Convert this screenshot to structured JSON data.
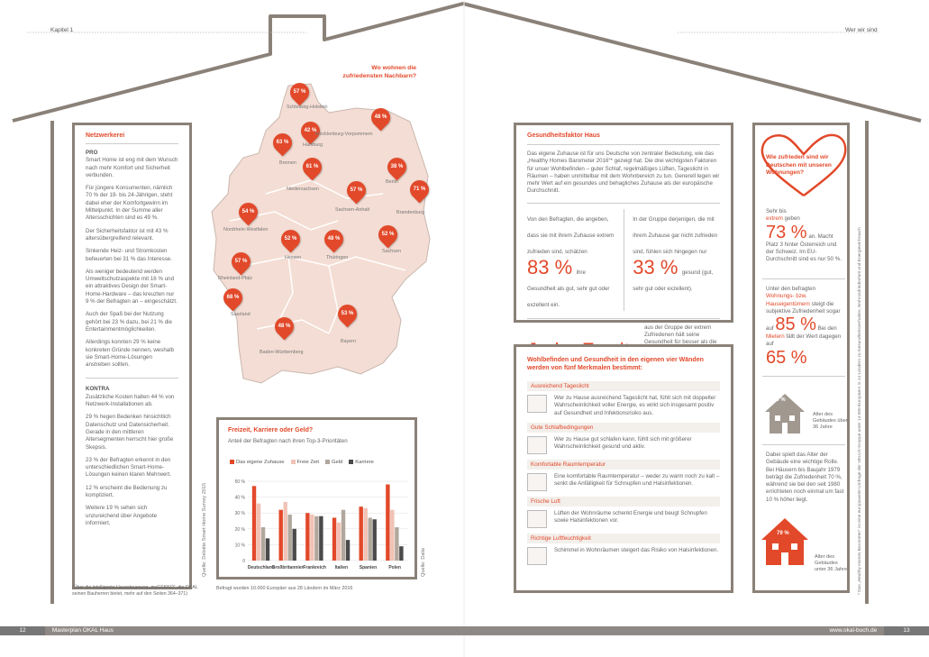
{
  "header": {
    "left": "Kapitel 1",
    "right": "Wer wir sind"
  },
  "footer": {
    "page_left": "12",
    "title_left": "Masterplan OKAL Haus",
    "url_right": "www.okal-buch.de",
    "page_right": "13"
  },
  "netzwerkerei": {
    "title": "Netzwerkerei",
    "pro_label": "PRO",
    "pro_p1": "Smart Home ist eng mit dem Wunsch nach mehr Komfort und Sicherheit verbunden.",
    "pro_p2": "Für jüngere Konsumenten, nämlich 70 % der 19- bis 24-Jährigen, steht dabei eher der Komfortgewinn im Mittelpunkt. In der Summe aller Altersschichten sind es 49 %.",
    "pro_p3": "Der Sicherheitsfaktor ist mit 43 % altersübergreifend relevant.",
    "pro_p4": "Sinkende Heiz- und Stromkosten befeuerten bei 31 % das Interesse.",
    "pro_p5": "Als weniger bedeutend werden Umweltschutzaspekte mit 16 % und ein attraktives Design der Smart-Home-Hardware – das kreuzten nur 9 % der Befragten an – eingeschätzt.",
    "pro_p6": "Auch der Spaß bei der Nutzung gehört bei 23 % dazu, bei 21 % die Entertainmentmöglichkeiten.",
    "pro_p7": "Allerdings konnten 29 % keine konkreten Gründe nennen, weshalb sie Smart-Home-Lösungen anstreben sollten.",
    "kontra_label": "KONTRA",
    "kontra_p1": "Zusätzliche Kosten halten 44 % von Netzwerk-Installationen ab.",
    "kontra_p2": "29 % hegen Bedenken hinsichtlich Datenschutz und Datensicherheit. Gerade in den mittleren Altersegmenten herrscht hier große Skepsis.",
    "kontra_p3": "23 % der Befragten erkennt in den unterschiedlichen Smart-Home-Lösungen keinen klaren Mehrwert.",
    "kontra_p4": "12 % erscheint die Bedienung zu kompliziert.",
    "kontra_p5": "Weitere 19 % sehen sich unzureichend über Angebote informiert.",
    "note": "(Über die intelligente Haussteuerung „myGEKKO“, die OKAL seinen Bauherren bietet, mehr auf den Seiten 364–371)"
  },
  "map": {
    "title": "Wo wohnen die zufriedensten Nachbarn?",
    "pins": [
      {
        "label": "57 %",
        "region": "Schleswig-Holstein"
      },
      {
        "label": "42 %",
        "region": "Hamburg"
      },
      {
        "label": "48 %",
        "region": "Mecklenburg-Vorpommern"
      },
      {
        "label": "63 %",
        "region": "Bremen"
      },
      {
        "label": "61 %",
        "region": "Niedersachsen"
      },
      {
        "label": "38 %",
        "region": "Berlin"
      },
      {
        "label": "71 %",
        "region": "Brandenburg"
      },
      {
        "label": "57 %",
        "region": "Sachsen-Anhalt"
      },
      {
        "label": "54 %",
        "region": "Nordrhein-Westfalen"
      },
      {
        "label": "52 %",
        "region": "Hessen"
      },
      {
        "label": "48 %",
        "region": "Thüringen"
      },
      {
        "label": "52 %",
        "region": "Sachsen"
      },
      {
        "label": "57 %",
        "region": "Rheinland-Pfalz"
      },
      {
        "label": "68 %",
        "region": "Saarland"
      },
      {
        "label": "48 %",
        "region": "Baden-Württemberg"
      },
      {
        "label": "53 %",
        "region": "Bayern"
      }
    ]
  },
  "chart_box": {
    "title": "Freizeit, Karriere oder Geld?",
    "subtitle": "Anteil der Befragten nach ihren Top-3-Prioritäten",
    "source_left": "Quelle: Deloitte Smart Home Survey 2015",
    "source_right": "Quelle: Dalia",
    "footnote": "Befragt wurden 10.000 Europäer aus 28 Ländern im März 2016"
  },
  "chart_data": {
    "type": "bar",
    "title": "Freizeit, Karriere oder Geld?",
    "categories": [
      "Deutschland",
      "Großbritannien",
      "Frankreich",
      "Italien",
      "Spanien",
      "Polen"
    ],
    "series": [
      {
        "name": "Das eigene Zuhause",
        "values": [
          47,
          32,
          30,
          27,
          34,
          48
        ],
        "color": "#e2492a"
      },
      {
        "name": "Freie Zeit",
        "values": [
          36,
          37,
          29,
          24,
          33,
          32
        ],
        "color": "#f1c2b5"
      },
      {
        "name": "Geld",
        "values": [
          21,
          29,
          28,
          32,
          27,
          21
        ],
        "color": "#b1a79d"
      },
      {
        "name": "Karriere",
        "values": [
          14,
          20,
          28,
          13,
          26,
          9
        ],
        "color": "#4a4a4a"
      }
    ],
    "yticks": [
      "0",
      "10 %",
      "20 %",
      "30 %",
      "40 %",
      "50 %"
    ],
    "ylim": [
      0,
      50
    ]
  },
  "gesundheit": {
    "title": "Gesundheitsfaktor Haus",
    "body": "Das eigene Zuhause ist für uns Deutsche von zentraler Bedeutung, wie das „Healthy Homes Barometer 2016“* gezeigt hat. Die drei wichtigsten Faktoren für unser Wohlbefinden – guter Schlaf, regelmäßiges Lüften, Tageslicht in Räumen – haben unmittelbar mit dem Wohnbereich zu tun. Generell legen wir mehr Wert auf ein gesundes und behagliches Zuhause als der europäische Durchschnitt.",
    "left_intro": "Von den Befragten, die angeben, dass sie mit ihrem Zuhause extrem zufrieden sind, schätzen",
    "left_big": "83 %",
    "left_rest": "ihre Gesundheit als gut, sehr gut oder exzellent ein.",
    "right_intro": "In der Gruppe derjenigen, die mit ihrem Zuhause gar nicht zufrieden sind, fühlen sich hingegen nur",
    "right_big": "33 %",
    "right_rest": "gesund (gut, sehr gut oder exzellent).",
    "jeder_big": "Jeder Zweite",
    "jeder_rest": "aus der Gruppe der extrem Zufriedenen hält seine Gesundheit für besser als die seiner Altersgenossen. Im deutschen Durchschnitt beträgt das nur etwa jeder Dritte."
  },
  "wohlbefinden": {
    "title": "Wohlbefinden und Gesundheit in den eigenen vier Wänden werden von fünf Merkmalen bestimmt:",
    "items": [
      {
        "title": "Ausreichend Tageslicht",
        "text": "Wer zu Hause ausreichend Tageslicht hat, fühlt sich mit doppelter Wahrscheinlichkeit voller Energie, es wirkt sich insgesamt positiv auf Gesundheit und Infektionsrisiko aus."
      },
      {
        "title": "Gute Schlafbedingungen",
        "text": "Wer zu Hause gut schlafen kann, fühlt sich mit größerer Wahrscheinlichkeit gesund und aktiv."
      },
      {
        "title": "Komfortable Raumtemperatur",
        "text": "Eine komfortable Raumtemperatur – weder zu warm noch zu kalt – senkt die Anfälligkeit für Schnupfen und Halsinfektionen."
      },
      {
        "title": "Frische Luft",
        "text": "Lüften der Wohnräume schenkt Energie und beugt Schnupfen sowie Halsinfektionen vor."
      },
      {
        "title": "Richtige Luftfeuchtigkeit",
        "text": "Schimmel in Wohnräumen steigert das Risiko von Halsinfektionen."
      }
    ]
  },
  "zufrieden": {
    "title": "Wie zufrieden sind wir Deutschen mit unseren Wohnungen?",
    "p1_a": "Sehr bis",
    "p1_b": "extrem",
    "p1_c": "geben",
    "p1_big": "73 %",
    "p1_d": "an. Macht Platz 3 hinter Österreich und der Schweiz. Im EU-Durchschnitt sind es nur 50 %.",
    "p2_a": "Unter den befragten",
    "p2_b": "Wohnungs- bzw. Hauseigentümern",
    "p2_c": "steigt die subjektive Zufriedenheit sogar auf",
    "p2_big": "85 %",
    "p2_d": "Bei den",
    "p2_e": "Mietern",
    "p2_f": "fällt der Wert dagegen auf",
    "p2_big2": "65 %",
    "house1_pct": "70 %",
    "house1_label": "Alter des Gebäudes über 36 Jahre",
    "p3": "Dabei spielt das Alter der Gebäude eine wichtige Rolle. Bei Häusern bis Baujahr 1979 beträgt die Zufriedenheit 70 %, während sie bei den seit 1980 errichteten noch einmal um fast 10 % höher liegt.",
    "house2_pct": "79 %",
    "house2_label": "Alter des Gebäudes unter 36 Jahre",
    "side_note": "* Das „Healthy Homes Barometer“ ist eine europaweite Umfrage der VELUX-Gruppe unter 14.000 Europäern in 14 Ländern zu Gesundheitsverhalten, Wohnzufriedenheit und Energieverbrauch"
  }
}
